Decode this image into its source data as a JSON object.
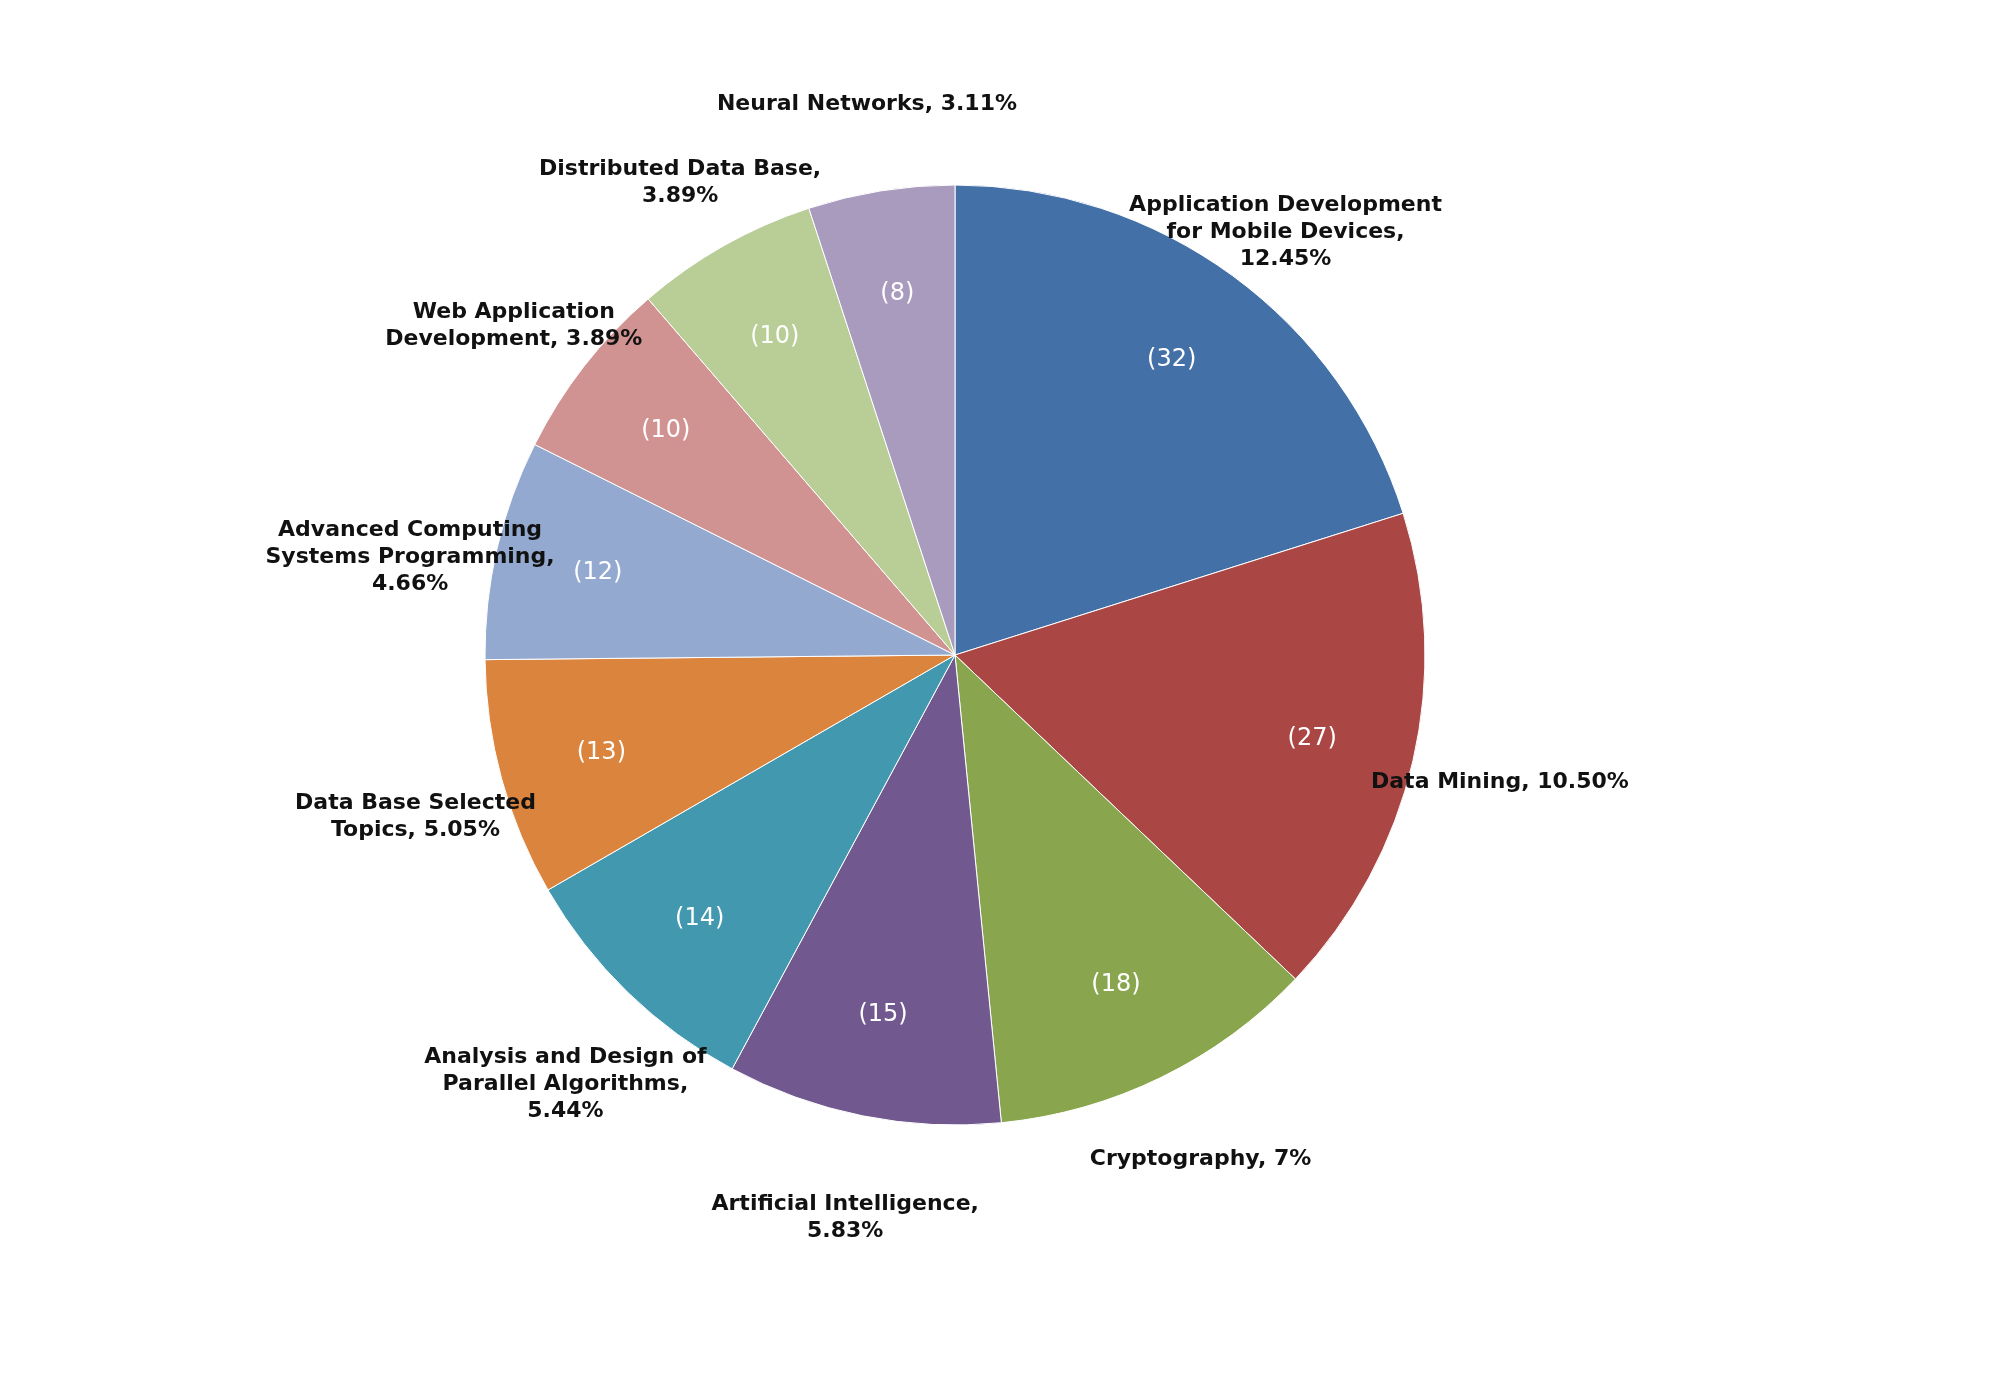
{
  "chart_data": {
    "type": "pie",
    "categories": [
      "Application Development for Mobile Devices, 12.45%",
      "Data Mining, 10.50%",
      "Cryptography, 7%",
      "Artificial Intelligence, 5.83%",
      "Analysis and Design of Parallel Algorithms, 5.44%",
      "Data Base Selected Topics, 5.05%",
      "Advanced Computing Systems Programming, 4.66%",
      "Web Application Development, 3.89%",
      "Distributed Data Base, 3.89%",
      "Neural Networks, 3.11%"
    ],
    "values": [
      32,
      27,
      18,
      15,
      14,
      13,
      12,
      10,
      10,
      8
    ],
    "value_labels": [
      "(32)",
      "(27)",
      "(18)",
      "(15)",
      "(14)",
      "(13)",
      "(12)",
      "(10)",
      "(10)",
      "(8)"
    ],
    "colors": [
      "#4470a8",
      "#aa4643",
      "#89a54e",
      "#71588f",
      "#4198af",
      "#db843d",
      "#93a9cf",
      "#d19392",
      "#b9cd96",
      "#a99bbd"
    ],
    "legend": false
  }
}
